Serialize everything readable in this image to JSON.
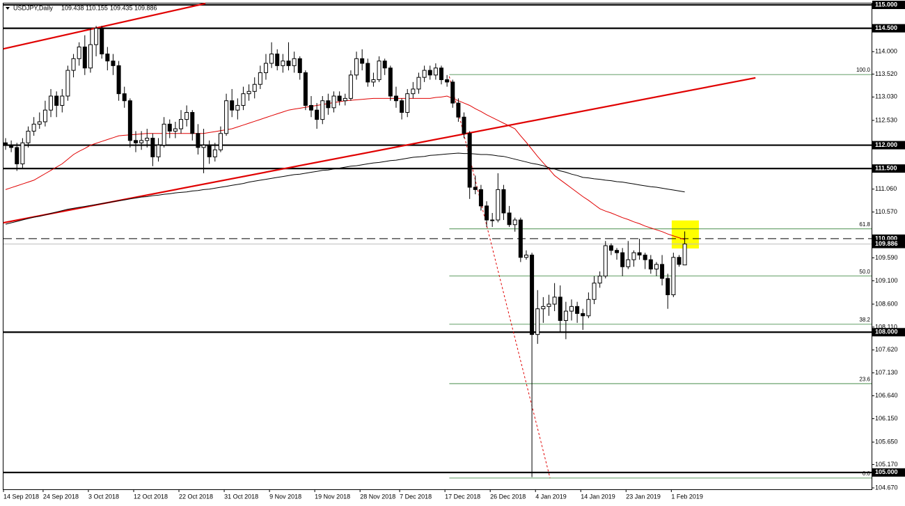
{
  "chart_data": {
    "type": "candlestick",
    "symbol": "USDJPY,Daily",
    "ylim": [
      104.64,
      115.03
    ],
    "yticks": [
      {
        "value": 114,
        "label": "114.000"
      },
      {
        "value": 113.52,
        "label": "113.520"
      },
      {
        "value": 113.03,
        "label": "113.030"
      },
      {
        "value": 112.53,
        "label": "112.530"
      },
      {
        "value": 111.06,
        "label": "111.060"
      },
      {
        "value": 110.57,
        "label": "110.570"
      },
      {
        "value": 109.59,
        "label": "109.590"
      },
      {
        "value": 109.1,
        "label": "109.100"
      },
      {
        "value": 108.6,
        "label": "108.600"
      },
      {
        "value": 108.11,
        "label": "108.110"
      },
      {
        "value": 107.62,
        "label": "107.620"
      },
      {
        "value": 107.13,
        "label": "107.130"
      },
      {
        "value": 106.64,
        "label": "106.640"
      },
      {
        "value": 106.15,
        "label": "106.150"
      },
      {
        "value": 105.65,
        "label": "105.650"
      },
      {
        "value": 105.17,
        "label": "105.170"
      },
      {
        "value": 104.67,
        "label": "104.670"
      }
    ],
    "levels": [
      {
        "value": 115,
        "label": "115.000",
        "style": "solid"
      },
      {
        "value": 114.5,
        "label": "114.500",
        "style": "thick"
      },
      {
        "value": 112,
        "label": "112.000",
        "style": "thick"
      },
      {
        "value": 111.5,
        "label": "111.500",
        "style": "thick"
      },
      {
        "value": 110,
        "label": "110.000",
        "style": "dashed"
      },
      {
        "value": 109.886,
        "style": "current"
      },
      {
        "value": 108,
        "label": "108.000",
        "style": "thick"
      },
      {
        "value": 105,
        "label": "105.000",
        "style": "thick"
      }
    ],
    "categories": [
      "14 Sep 2018",
      null,
      null,
      null,
      null,
      null,
      null,
      "24 Sep 2018",
      null,
      null,
      null,
      null,
      null,
      null,
      null,
      "3 Oct 2018",
      null,
      null,
      null,
      null,
      null,
      null,
      null,
      "12 Oct 2018",
      null,
      null,
      null,
      null,
      null,
      null,
      null,
      "22 Oct 2018",
      null,
      null,
      null,
      null,
      null,
      null,
      null,
      "31 Oct 2018",
      null,
      null,
      null,
      null,
      null,
      null,
      null,
      "9 Nov 2018",
      null,
      null,
      null,
      null,
      null,
      null,
      null,
      "19 Nov 2018",
      null,
      null,
      null,
      null,
      null,
      null,
      null,
      "28 Nov 2018",
      null,
      null,
      null,
      null,
      null,
      null,
      "7 Dec 2018",
      null,
      null,
      null,
      null,
      null,
      null,
      null,
      "17 Dec 2018",
      null,
      null,
      null,
      null,
      null,
      null,
      null,
      "26 Dec 2018",
      null,
      null,
      null,
      null,
      null,
      null,
      null,
      "4 Jan 2019",
      null,
      null,
      null,
      null,
      null,
      null,
      null,
      "14 Jan 2019",
      null,
      null,
      null,
      null,
      null,
      null,
      null,
      "23 Jan 2019",
      null,
      null,
      null,
      null,
      null,
      null,
      null,
      "1 Feb 2019",
      null,
      null
    ],
    "ohlc": [
      [
        112.05,
        112.15,
        111.9,
        112.0
      ],
      [
        112.0,
        112.1,
        111.85,
        111.95
      ],
      [
        111.95,
        112.05,
        111.45,
        111.6
      ],
      [
        111.6,
        112.15,
        111.5,
        112.05
      ],
      [
        112.05,
        112.4,
        111.95,
        112.3
      ],
      [
        112.3,
        112.6,
        112.2,
        112.45
      ],
      [
        112.45,
        112.7,
        112.35,
        112.5
      ],
      [
        112.5,
        112.95,
        112.4,
        112.75
      ],
      [
        112.75,
        113.2,
        112.6,
        113.05
      ],
      [
        113.05,
        113.15,
        112.6,
        112.85
      ],
      [
        112.85,
        113.2,
        112.7,
        113.05
      ],
      [
        113.05,
        113.7,
        112.95,
        113.6
      ],
      [
        113.6,
        113.95,
        113.45,
        113.85
      ],
      [
        113.85,
        114.2,
        113.7,
        114.1
      ],
      [
        114.1,
        114.35,
        113.5,
        113.65
      ],
      [
        113.65,
        114.5,
        113.55,
        114.15
      ],
      [
        114.15,
        114.55,
        113.9,
        114.5
      ],
      [
        114.5,
        114.55,
        113.85,
        113.95
      ],
      [
        113.95,
        114.1,
        113.6,
        113.8
      ],
      [
        113.8,
        113.95,
        113.5,
        113.7
      ],
      [
        113.7,
        113.8,
        112.95,
        113.1
      ],
      [
        113.1,
        113.25,
        112.8,
        112.95
      ],
      [
        112.95,
        113.0,
        111.95,
        112.1
      ],
      [
        112.1,
        112.3,
        111.85,
        112.05
      ],
      [
        112.05,
        112.3,
        111.9,
        112.1
      ],
      [
        112.1,
        112.35,
        111.95,
        112.15
      ],
      [
        112.15,
        112.25,
        111.55,
        111.75
      ],
      [
        111.75,
        112.15,
        111.65,
        112.0
      ],
      [
        112.0,
        112.6,
        111.95,
        112.45
      ],
      [
        112.45,
        112.55,
        112.15,
        112.3
      ],
      [
        112.3,
        112.5,
        112.15,
        112.35
      ],
      [
        112.35,
        112.75,
        112.25,
        112.55
      ],
      [
        112.55,
        112.85,
        112.4,
        112.7
      ],
      [
        112.7,
        112.75,
        112.1,
        112.25
      ],
      [
        112.25,
        112.45,
        111.8,
        111.95
      ],
      [
        111.95,
        112.35,
        111.4,
        112.0
      ],
      [
        112.0,
        112.1,
        111.6,
        111.75
      ],
      [
        111.75,
        112.05,
        111.65,
        111.9
      ],
      [
        111.9,
        112.4,
        111.85,
        112.25
      ],
      [
        112.25,
        113.1,
        112.2,
        112.95
      ],
      [
        112.95,
        113.2,
        112.6,
        112.75
      ],
      [
        112.75,
        113.0,
        112.55,
        112.85
      ],
      [
        112.85,
        113.25,
        112.75,
        113.1
      ],
      [
        113.1,
        113.3,
        112.95,
        113.15
      ],
      [
        113.15,
        113.45,
        113.0,
        113.3
      ],
      [
        113.3,
        113.7,
        113.2,
        113.55
      ],
      [
        113.55,
        113.95,
        113.4,
        113.75
      ],
      [
        113.75,
        114.2,
        113.65,
        113.95
      ],
      [
        113.95,
        114.05,
        113.6,
        113.7
      ],
      [
        113.7,
        113.95,
        113.55,
        113.8
      ],
      [
        113.8,
        114.2,
        113.6,
        113.7
      ],
      [
        113.7,
        114.0,
        113.55,
        113.85
      ],
      [
        113.85,
        113.9,
        113.4,
        113.55
      ],
      [
        113.55,
        113.6,
        112.75,
        112.85
      ],
      [
        112.85,
        113.05,
        112.6,
        112.75
      ],
      [
        112.75,
        112.9,
        112.35,
        112.55
      ],
      [
        112.55,
        113.05,
        112.45,
        112.95
      ],
      [
        112.95,
        113.1,
        112.65,
        112.8
      ],
      [
        112.8,
        113.15,
        112.7,
        113.05
      ],
      [
        113.05,
        113.15,
        112.85,
        112.95
      ],
      [
        112.95,
        113.1,
        112.85,
        113.0
      ],
      [
        113.0,
        113.6,
        112.95,
        113.5
      ],
      [
        113.5,
        114.0,
        113.4,
        113.85
      ],
      [
        113.85,
        114.05,
        113.6,
        113.75
      ],
      [
        113.75,
        113.85,
        113.25,
        113.35
      ],
      [
        113.35,
        113.55,
        113.25,
        113.4
      ],
      [
        113.4,
        113.9,
        113.35,
        113.8
      ],
      [
        113.8,
        113.85,
        113.5,
        113.65
      ],
      [
        113.65,
        113.7,
        112.95,
        113.05
      ],
      [
        113.05,
        113.25,
        112.8,
        112.95
      ],
      [
        112.95,
        113.0,
        112.55,
        112.7
      ],
      [
        112.7,
        113.2,
        112.6,
        113.1
      ],
      [
        113.1,
        113.35,
        113.0,
        113.2
      ],
      [
        113.2,
        113.55,
        113.1,
        113.45
      ],
      [
        113.45,
        113.7,
        113.35,
        113.6
      ],
      [
        113.6,
        113.7,
        113.4,
        113.5
      ],
      [
        113.5,
        113.75,
        113.4,
        113.65
      ],
      [
        113.65,
        113.7,
        113.3,
        113.4
      ],
      [
        113.4,
        113.5,
        113.25,
        113.35
      ],
      [
        113.35,
        113.4,
        112.8,
        112.9
      ],
      [
        112.9,
        113.0,
        112.5,
        112.6
      ],
      [
        112.6,
        112.7,
        112.15,
        112.25
      ],
      [
        112.25,
        112.3,
        110.85,
        111.1
      ],
      [
        111.1,
        111.35,
        110.95,
        111.05
      ],
      [
        111.05,
        111.15,
        110.6,
        110.7
      ],
      [
        110.7,
        110.8,
        110.25,
        110.4
      ],
      [
        110.4,
        110.55,
        110.25,
        110.4
      ],
      [
        110.4,
        111.4,
        110.35,
        111.05
      ],
      [
        111.05,
        111.15,
        110.4,
        110.55
      ],
      [
        110.55,
        110.7,
        110.25,
        110.3
      ],
      [
        110.3,
        110.45,
        110.15,
        110.4
      ],
      [
        110.4,
        110.45,
        109.5,
        109.6
      ],
      [
        109.6,
        109.75,
        109.55,
        109.65
      ],
      [
        109.65,
        109.7,
        104.9,
        107.95
      ],
      [
        107.95,
        108.9,
        107.75,
        108.5
      ],
      [
        108.5,
        108.75,
        108.2,
        108.55
      ],
      [
        108.55,
        108.8,
        108.35,
        108.6
      ],
      [
        108.6,
        109.05,
        108.45,
        108.75
      ],
      [
        108.75,
        109.0,
        108.0,
        108.25
      ],
      [
        108.25,
        108.65,
        107.85,
        108.45
      ],
      [
        108.45,
        108.7,
        108.25,
        108.55
      ],
      [
        108.55,
        108.65,
        108.2,
        108.4
      ],
      [
        108.4,
        108.5,
        108.05,
        108.35
      ],
      [
        108.35,
        108.85,
        108.3,
        108.7
      ],
      [
        108.7,
        109.2,
        108.6,
        109.05
      ],
      [
        109.05,
        109.3,
        108.95,
        109.2
      ],
      [
        109.2,
        109.95,
        109.15,
        109.85
      ],
      [
        109.85,
        109.9,
        109.65,
        109.75
      ],
      [
        109.75,
        109.8,
        109.55,
        109.7
      ],
      [
        109.7,
        109.8,
        109.2,
        109.4
      ],
      [
        109.4,
        109.95,
        109.35,
        109.55
      ],
      [
        109.55,
        109.75,
        109.4,
        109.7
      ],
      [
        109.7,
        110.0,
        109.55,
        109.65
      ],
      [
        109.65,
        109.7,
        109.35,
        109.55
      ],
      [
        109.55,
        109.65,
        109.25,
        109.35
      ],
      [
        109.35,
        109.5,
        109.2,
        109.45
      ],
      [
        109.45,
        109.65,
        109.0,
        109.15
      ],
      [
        109.15,
        109.25,
        108.5,
        108.8
      ],
      [
        108.8,
        109.7,
        108.75,
        109.6
      ],
      [
        109.6,
        109.65,
        109.4,
        109.45
      ],
      [
        109.438,
        110.155,
        109.435,
        109.886
      ]
    ],
    "series": [
      {
        "color": "#e00000",
        "values": [
          111.05,
          111.09,
          111.13,
          111.17,
          111.21,
          111.25,
          111.32,
          111.39,
          111.46,
          111.53,
          111.6,
          111.7,
          111.8,
          111.87,
          111.93,
          112.0,
          112.04,
          112.08,
          112.12,
          112.16,
          112.2,
          112.21,
          112.22,
          112.23,
          112.24,
          112.25,
          112.25,
          112.25,
          112.25,
          112.25,
          112.25,
          112.25,
          112.25,
          112.25,
          112.25,
          112.25,
          112.27,
          112.29,
          112.31,
          112.33,
          112.35,
          112.39,
          112.43,
          112.47,
          112.51,
          112.55,
          112.59,
          112.63,
          112.67,
          112.71,
          112.75,
          112.77,
          112.79,
          112.81,
          112.83,
          112.85,
          112.87,
          112.89,
          112.91,
          112.93,
          112.95,
          112.96,
          112.97,
          112.98,
          112.99,
          113.0,
          113.0,
          113.0,
          113.0,
          113.0,
          113.0,
          113.0,
          113.0,
          113.0,
          113.0,
          113.0,
          113.02,
          113.03,
          113.05,
          113.0,
          112.95,
          112.9,
          112.85,
          112.78,
          112.72,
          112.65,
          112.59,
          112.53,
          112.47,
          112.41,
          112.35,
          112.2,
          112.06,
          111.91,
          111.76,
          111.62,
          111.49,
          111.35,
          111.26,
          111.17,
          111.08,
          110.99,
          110.9,
          110.82,
          110.73,
          110.64,
          110.59,
          110.55,
          110.5,
          110.45,
          110.41,
          110.36,
          110.32,
          110.27,
          110.23,
          110.19,
          110.15,
          110.1,
          110.06,
          110.02,
          109.98
        ]
      },
      {
        "color": "#000000",
        "values": [
          110.31,
          110.34,
          110.37,
          110.4,
          110.43,
          110.46,
          110.48,
          110.51,
          110.54,
          110.57,
          110.6,
          110.63,
          110.65,
          110.67,
          110.69,
          110.71,
          110.73,
          110.75,
          110.77,
          110.79,
          110.81,
          110.83,
          110.85,
          110.87,
          110.89,
          110.9,
          110.92,
          110.93,
          110.95,
          110.96,
          110.98,
          110.99,
          111.0,
          111.02,
          111.03,
          111.05,
          111.06,
          111.08,
          111.1,
          111.12,
          111.14,
          111.16,
          111.18,
          111.21,
          111.23,
          111.25,
          111.27,
          111.29,
          111.31,
          111.33,
          111.35,
          111.37,
          111.38,
          111.4,
          111.42,
          111.44,
          111.46,
          111.47,
          111.49,
          111.51,
          111.53,
          111.55,
          111.56,
          111.58,
          111.6,
          111.62,
          111.63,
          111.65,
          111.67,
          111.68,
          111.7,
          111.72,
          111.74,
          111.75,
          111.76,
          111.78,
          111.79,
          111.8,
          111.81,
          111.82,
          111.83,
          111.82,
          111.82,
          111.81,
          111.8,
          111.8,
          111.79,
          111.77,
          111.76,
          111.73,
          111.7,
          111.67,
          111.64,
          111.61,
          111.59,
          111.56,
          111.52,
          111.49,
          111.45,
          111.42,
          111.38,
          111.35,
          111.31,
          111.3,
          111.28,
          111.27,
          111.25,
          111.24,
          111.22,
          111.21,
          111.19,
          111.17,
          111.15,
          111.13,
          111.11,
          111.1,
          111.08,
          111.06,
          111.04,
          111.02,
          111.0
        ]
      }
    ],
    "trendlines": [
      {
        "from": [
          -0.4,
          114.06
        ],
        "to": [
          35.3,
          115.03
        ],
        "color": "#e00000",
        "style": "solid"
      },
      {
        "from": [
          -0.4,
          110.34
        ],
        "to": [
          132.5,
          113.44
        ],
        "color": "#e00000",
        "style": "solid"
      },
      {
        "from": [
          78.4,
          113.47
        ],
        "to": [
          96.2,
          104.88
        ],
        "color": "#e00000",
        "style": "dotted"
      }
    ],
    "fibonacci": {
      "start": 78.4,
      "color": "#2e7d32",
      "levels": [
        {
          "label": "100.0",
          "value": 113.51
        },
        {
          "label": "61.8",
          "value": 110.21
        },
        {
          "label": "50.0",
          "value": 109.2
        },
        {
          "label": "38.2",
          "value": 108.17
        },
        {
          "label": "23.6",
          "value": 106.9
        },
        {
          "label": "0.0",
          "value": 104.88
        }
      ]
    },
    "highlight": {
      "from": [
        117.7,
        110.39
      ],
      "to": [
        122.5,
        109.79
      ],
      "color": "#ffff00"
    }
  }
}
